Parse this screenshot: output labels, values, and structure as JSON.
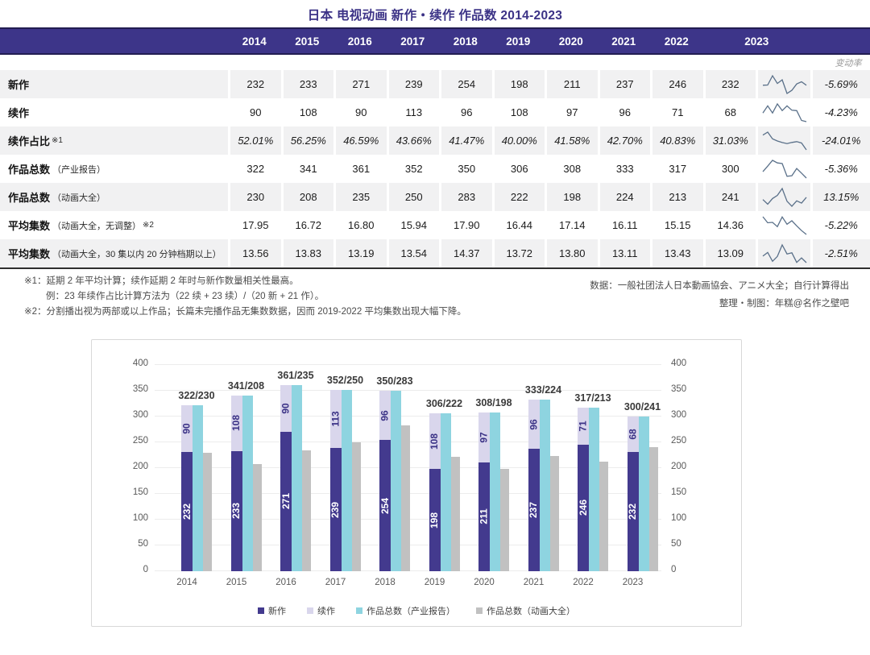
{
  "title": "日本 电视动画 新作・续作 作品数 2014-2023",
  "table": {
    "years": [
      "2014",
      "2015",
      "2016",
      "2017",
      "2018",
      "2019",
      "2020",
      "2021",
      "2022",
      "2023"
    ],
    "change_header": "变动率",
    "rows": [
      {
        "label": "新作",
        "paren": "",
        "note": "",
        "values": [
          "232",
          "233",
          "271",
          "239",
          "254",
          "198",
          "211",
          "237",
          "246",
          "232"
        ],
        "change": "-5.69%",
        "italic": false
      },
      {
        "label": "续作",
        "paren": "",
        "note": "",
        "values": [
          "90",
          "108",
          "90",
          "113",
          "96",
          "108",
          "97",
          "96",
          "71",
          "68"
        ],
        "change": "-4.23%",
        "italic": false
      },
      {
        "label": "续作占比",
        "paren": "",
        "note": "※1",
        "values": [
          "52.01%",
          "56.25%",
          "46.59%",
          "43.66%",
          "41.47%",
          "40.00%",
          "41.58%",
          "42.70%",
          "40.83%",
          "31.03%"
        ],
        "change": "-24.01%",
        "italic": true
      },
      {
        "label": "作品总数",
        "paren": "（产业报告）",
        "note": "",
        "values": [
          "322",
          "341",
          "361",
          "352",
          "350",
          "306",
          "308",
          "333",
          "317",
          "300"
        ],
        "change": "-5.36%",
        "italic": false
      },
      {
        "label": "作品总数",
        "paren": "（动画大全）",
        "note": "",
        "values": [
          "230",
          "208",
          "235",
          "250",
          "283",
          "222",
          "198",
          "224",
          "213",
          "241"
        ],
        "change": "13.15%",
        "italic": false
      },
      {
        "label": "平均集数",
        "paren": "（动画大全，无调整）",
        "note": "※2",
        "values": [
          "17.95",
          "16.72",
          "16.80",
          "15.94",
          "17.90",
          "16.44",
          "17.14",
          "16.11",
          "15.15",
          "14.36"
        ],
        "change": "-5.22%",
        "italic": false
      },
      {
        "label": "平均集数",
        "paren": "（动画大全，30 集以内 20 分钟档期以上）",
        "note": "",
        "values": [
          "13.56",
          "13.83",
          "13.19",
          "13.54",
          "14.37",
          "13.72",
          "13.80",
          "13.11",
          "13.43",
          "13.09"
        ],
        "change": "-2.51%",
        "italic": false
      }
    ]
  },
  "footnotes": {
    "line1": "※1：延期 2 年平均计算；续作延期 2 年时与新作数量相关性最高。",
    "line2": "例：23 年续作占比计算方法为（22 续 + 23 续）/（20 新 + 21 作）。",
    "line3": "※2：分割播出视为两部或以上作品；长篇未完播作品无集数数据，因而 2019-2022 平均集数出现大幅下降。"
  },
  "credits": {
    "line1": "数据：一般社团法人日本動画協会、アニメ大全；自行计算得出",
    "line2": "整理・制图：年糕@名作之壁吧"
  },
  "colors": {
    "header_purple": "#3d3589",
    "title_purple": "#3b3286",
    "sparkline": "#5a7089",
    "new_bar": "#433a8e",
    "sequel_bar": "#d9d6ec",
    "industry_bar": "#8ed4e0",
    "taizen_bar": "#c1c1c1"
  },
  "chart_data": {
    "type": "bar",
    "categories": [
      "2014",
      "2015",
      "2016",
      "2017",
      "2018",
      "2019",
      "2020",
      "2021",
      "2022",
      "2023"
    ],
    "series": [
      {
        "name": "新作",
        "color": "#433a8e",
        "values": [
          232,
          233,
          271,
          239,
          254,
          198,
          211,
          237,
          246,
          232
        ],
        "stacked": true,
        "label_color": "#ffffff"
      },
      {
        "name": "续作",
        "color": "#d9d6ec",
        "values": [
          90,
          108,
          90,
          113,
          96,
          108,
          97,
          96,
          71,
          68
        ],
        "stacked": true,
        "label_color": "#3b3286"
      },
      {
        "name": "作品总数（产业报告）",
        "color": "#8ed4e0",
        "values": [
          322,
          341,
          361,
          352,
          350,
          306,
          308,
          333,
          317,
          300
        ]
      },
      {
        "name": "作品总数（动画大全）",
        "color": "#c1c1c1",
        "values": [
          230,
          208,
          235,
          250,
          283,
          222,
          198,
          224,
          213,
          241
        ]
      }
    ],
    "bar_top_labels": [
      "322/230",
      "341/208",
      "361/235",
      "352/250",
      "350/283",
      "306/222",
      "308/198",
      "333/224",
      "317/213",
      "300/241"
    ],
    "title": "",
    "xlabel": "",
    "ylabel": "",
    "ylim": [
      0,
      400
    ],
    "ytick_step": 50,
    "grid": true,
    "dual_axis": true,
    "legend_position": "bottom"
  }
}
